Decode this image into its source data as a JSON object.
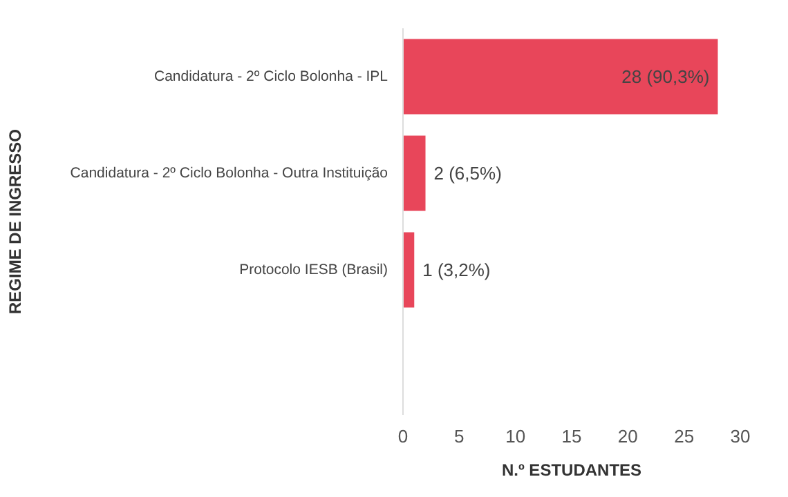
{
  "chart_data": {
    "type": "bar",
    "orientation": "horizontal",
    "xlabel": "N.º ESTUDANTES",
    "ylabel": "REGIME DE INGRESSO",
    "categories": [
      "Candidatura - 2º Ciclo Bolonha - IPL",
      "Candidatura - 2º Ciclo Bolonha - Outra Instituição",
      "Protocolo IESB (Brasil)"
    ],
    "values": [
      28,
      2,
      1
    ],
    "value_labels": [
      "28 (90,3%)",
      "2 (6,5%)",
      "1 (3,2%)"
    ],
    "color": "#e8465a",
    "xlim": [
      0,
      30
    ],
    "xticks": [
      0,
      5,
      10,
      15,
      20,
      25,
      30
    ],
    "grid": false
  }
}
